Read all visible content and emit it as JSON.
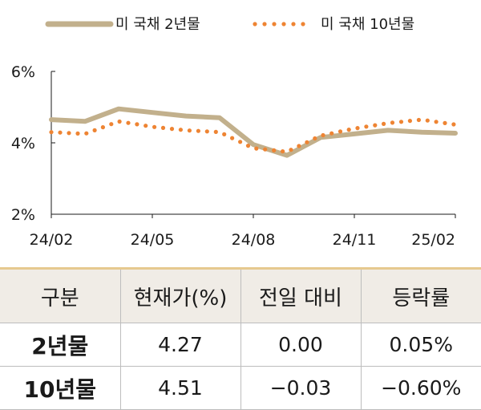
{
  "chart_data": {
    "type": "line",
    "x": [
      "24/02",
      "24/03",
      "24/04",
      "24/05",
      "24/06",
      "24/07",
      "24/08",
      "24/09",
      "24/10",
      "24/11",
      "24/12",
      "25/01",
      "25/02"
    ],
    "xticks": [
      "24/02",
      "24/05",
      "24/08",
      "24/11",
      "25/02"
    ],
    "yticks": [
      "6%",
      "4%",
      "2%"
    ],
    "ylim": [
      2,
      6
    ],
    "grid": false,
    "legend_position": "top",
    "series": [
      {
        "name": "미 국채 2년물",
        "color": "#c2b08c",
        "style": "solid",
        "values": [
          4.65,
          4.6,
          4.95,
          4.85,
          4.75,
          4.7,
          3.95,
          3.65,
          4.15,
          4.25,
          4.35,
          4.3,
          4.27
        ]
      },
      {
        "name": "미 국채 10년물",
        "color": "#ee8433",
        "style": "dotted",
        "values": [
          4.3,
          4.25,
          4.6,
          4.45,
          4.35,
          4.3,
          3.85,
          3.75,
          4.2,
          4.4,
          4.55,
          4.65,
          4.51
        ]
      }
    ]
  },
  "table": {
    "headers": [
      "구분",
      "현재가(%)",
      "전일 대비",
      "등락률"
    ],
    "rows": [
      [
        "2년물",
        "4.27",
        "0.00",
        "0.05%"
      ],
      [
        "10년물",
        "4.51",
        "−0.03",
        "−0.60%"
      ]
    ]
  }
}
